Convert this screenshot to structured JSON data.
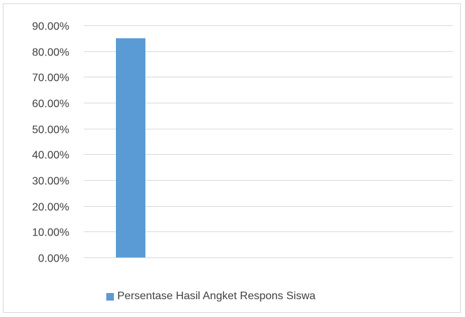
{
  "chart_data": {
    "type": "bar",
    "categories": [
      ""
    ],
    "series": [
      {
        "name": "Persentase Hasil Angket Respons Siswa",
        "values": [
          0.85
        ],
        "color": "#5b9bd5"
      }
    ],
    "title": "",
    "xlabel": "",
    "ylabel": "",
    "ylim": [
      0,
      0.9
    ],
    "yticks": [
      0,
      0.1,
      0.2,
      0.3,
      0.4,
      0.5,
      0.6,
      0.7,
      0.8,
      0.9
    ],
    "ytick_labels": [
      "0.00%",
      "10.00%",
      "20.00%",
      "30.00%",
      "40.00%",
      "50.00%",
      "60.00%",
      "70.00%",
      "80.00%",
      "90.00%"
    ],
    "grid": true,
    "gridline_color": "#d9d9d9",
    "legend_position": "bottom"
  }
}
